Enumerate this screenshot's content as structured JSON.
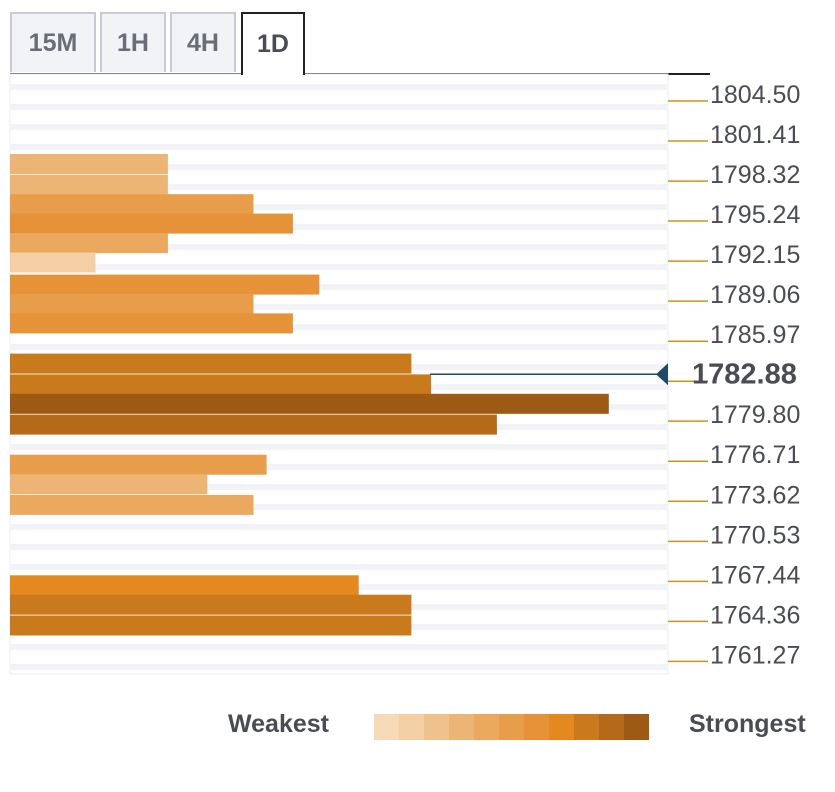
{
  "tabs": [
    {
      "label": "15M",
      "active": false
    },
    {
      "label": "1H",
      "active": false
    },
    {
      "label": "4H",
      "active": false
    },
    {
      "label": "1D",
      "active": true
    }
  ],
  "chart_data": {
    "type": "bar",
    "orientation": "horizontal",
    "price_levels": [
      "1804.50",
      "1801.41",
      "1798.32",
      "1795.24",
      "1792.15",
      "1789.06",
      "1785.97",
      "1782.88",
      "1779.80",
      "1776.71",
      "1773.62",
      "1770.53",
      "1767.44",
      "1764.36",
      "1761.27"
    ],
    "current_price": "1782.88",
    "x_max": 100,
    "bars": [
      {
        "price": 1799.1,
        "strength": 3,
        "value": 24
      },
      {
        "price": 1797.5,
        "strength": 3,
        "value": 24
      },
      {
        "price": 1796.0,
        "strength": 5,
        "value": 37
      },
      {
        "price": 1794.5,
        "strength": 6,
        "value": 43
      },
      {
        "price": 1793.0,
        "strength": 4,
        "value": 24
      },
      {
        "price": 1791.5,
        "strength": 1,
        "value": 13
      },
      {
        "price": 1789.8,
        "strength": 6,
        "value": 47
      },
      {
        "price": 1788.3,
        "strength": 5,
        "value": 37
      },
      {
        "price": 1786.8,
        "strength": 6,
        "value": 43
      },
      {
        "price": 1783.7,
        "strength": 8,
        "value": 61
      },
      {
        "price": 1782.1,
        "strength": 8,
        "value": 64
      },
      {
        "price": 1780.6,
        "strength": 10,
        "value": 91
      },
      {
        "price": 1779.0,
        "strength": 9,
        "value": 74
      },
      {
        "price": 1775.9,
        "strength": 5,
        "value": 39
      },
      {
        "price": 1774.4,
        "strength": 3,
        "value": 30
      },
      {
        "price": 1772.8,
        "strength": 4,
        "value": 37
      },
      {
        "price": 1766.6,
        "strength": 7,
        "value": 53
      },
      {
        "price": 1765.1,
        "strength": 8,
        "value": 61
      },
      {
        "price": 1763.5,
        "strength": 8,
        "value": 61
      }
    ],
    "legend": {
      "weakest": "Weakest",
      "strongest": "Strongest"
    },
    "strength_colors": [
      "#f6d9b6",
      "#f3cfa3",
      "#efc18c",
      "#ecb575",
      "#eaa95f",
      "#e89d4a",
      "#e69238",
      "#e4891f",
      "#c97a1c",
      "#b46a18",
      "#9c5a14"
    ],
    "label_tick_color": "#c8941c",
    "current_marker_color": "#1d4a66",
    "grid": true
  }
}
